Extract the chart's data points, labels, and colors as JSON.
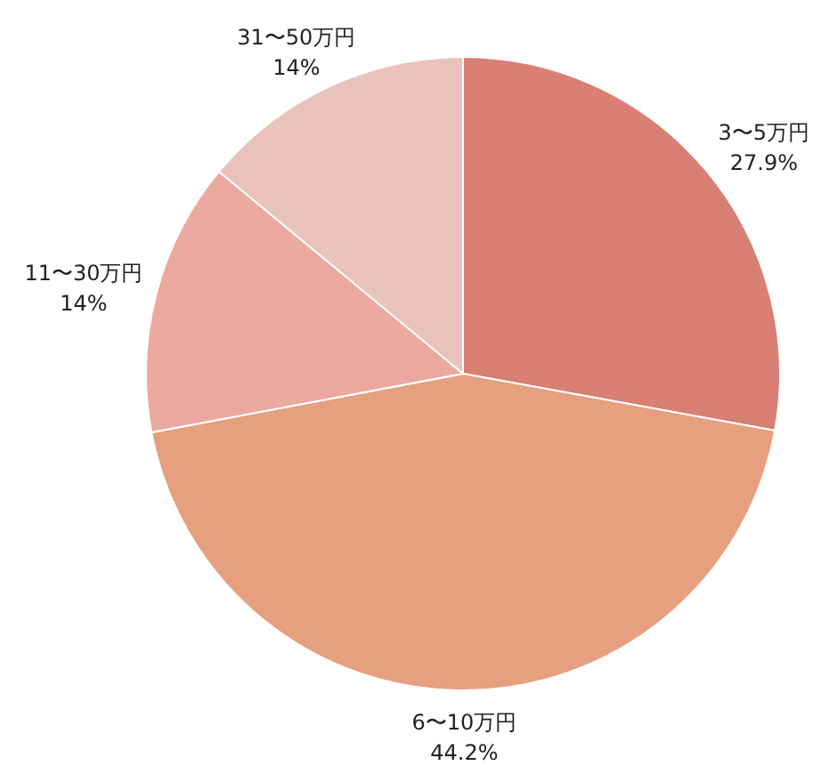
{
  "chart_data": {
    "type": "pie",
    "categories": [
      "3〜5万円",
      "6〜10万円",
      "11〜30万円",
      "31〜50万円"
    ],
    "values": [
      27.9,
      44.2,
      14,
      14
    ],
    "colors": [
      "#d97f74",
      "#e6a07f",
      "#eba99f",
      "#e9c3bb"
    ],
    "value_labels": [
      "27.9%",
      "44.2%",
      "14%",
      "14%"
    ]
  }
}
